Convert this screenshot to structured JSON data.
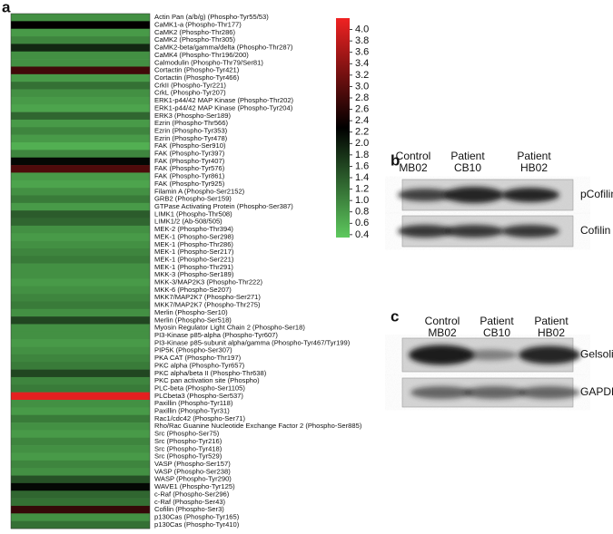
{
  "chart_data": {
    "type": "heatmap",
    "panel_label": "a",
    "categories": [
      "Actin Pan (a/b/g) (Phospho-Tyr55/53)",
      "CaMK1-a (Phospho-Thr177)",
      "CaMK2 (Phospho-Thr286)",
      "CaMK2 (Phospho-Thr305)",
      "CaMK2-beta/gamma/delta (Phospho-Thr287)",
      "CaMK4 (Phospho-Thr196/200)",
      "Calmodulin (Phospho-Thr79/Ser81)",
      "Cortactin (Phospho-Tyr421)",
      "Cortactin (Phospho-Tyr466)",
      "CrkII (Phospho-Tyr221)",
      "CrkL (Phospho-Tyr207)",
      "ERK1-p44/42 MAP Kinase (Phospho-Thr202)",
      "ERK1-p44/42 MAP Kinase (Phospho-Tyr204)",
      "ERK3 (Phospho-Ser189)",
      "Ezrin (Phospho-Thr566)",
      "Ezrin (Phospho-Tyr353)",
      "Ezrin (Phospho-Tyr478)",
      "FAK (Phospho-Ser910)",
      "FAK (Phospho-Tyr397)",
      "FAK (Phospho-Tyr407)",
      "FAK (Phospho-Tyr576)",
      "FAK (Phospho-Tyr861)",
      "FAK (Phospho-Tyr925)",
      "Filamin A (Phospho-Ser2152)",
      "GRB2 (Phospho-Ser159)",
      "GTPase Activating Protein (Phospho-Ser387)",
      "LIMK1 (Phospho-Thr508)",
      "LIMK1/2 (Ab-508/505)",
      "MEK-2 (Phospho-Thr394)",
      "MEK-1 (Phospho-Ser298)",
      "MEK-1 (Phospho-Thr286)",
      "MEK-1 (Phospho-Ser217)",
      "MEK-1 (Phospho-Ser221)",
      "MEK-1 (Phospho-Thr291)",
      "MKK-3 (Phospho-Ser189)",
      "MKK-3/MAP2K3 (Phospho-Thr222)",
      "MKK-6 (Phospho-Se207)",
      "MKK7/MAP2K7 (Phospho-Ser271)",
      "MKK7/MAP2K7 (Phospho-Thr275)",
      "Merlin (Phospho-Ser10)",
      "Merlin (Phospho-Ser518)",
      "Myosin Regulator Light Chain 2 (Phospho-Ser18)",
      "PI3-Kinase p85-alpha (Phospho-Tyr607)",
      "PI3-Kinase p85-subunit alpha/gamma (Phospho-Tyr467/Tyr199)",
      "PIP5K (Phospho-Ser307)",
      "PKA CAT (Phospho-Thr197)",
      "PKC alpha (Phospho-Tyr657)",
      "PKC alpha/beta II (Phospho-Thr638)",
      "PKC pan activation site (Phospho)",
      "PLC-beta (Phospho-Ser1105)",
      "PLCbeta3 (Phospho-Ser537)",
      "Paxillin (Phospho-Tyr118)",
      "Paxillin (Phospho-Tyr31)",
      "Rac1/cdc42 (Phospho-Ser71)",
      "Rho/Rac Guanine Nucleotide Exchange Factor 2 (Phospho-Ser885)",
      "Src (Phospho-Ser75)",
      "Src (Phospho-Tyr216)",
      "Src (Phospho-Tyr418)",
      "Src (Phospho-Tyr529)",
      "VASP (Phospho-Ser157)",
      "VASP (Phospho-Ser238)",
      "WASP (Phospho-Tyr290)",
      "WAVE1 (Phospho-Tyr125)",
      "c-Raf (Phospho-Ser296)",
      "c-Raf (Phospho-Ser43)",
      "Cofilin (Phospho-Ser3)",
      "p130Cas (Phospho-Tyr165)",
      "p130Cas (Phospho-Tyr410)"
    ],
    "values": [
      0.9,
      2.3,
      0.8,
      1.0,
      1.9,
      0.9,
      0.9,
      2.8,
      0.8,
      1.2,
      0.9,
      0.8,
      0.7,
      1.3,
      0.8,
      1.0,
      0.8,
      0.6,
      1.0,
      2.2,
      2.9,
      0.8,
      0.7,
      0.9,
      1.1,
      0.8,
      1.4,
      1.3,
      0.9,
      0.8,
      0.9,
      1.0,
      1.1,
      0.9,
      0.9,
      0.8,
      0.9,
      1.0,
      1.1,
      0.9,
      1.6,
      0.9,
      0.9,
      0.8,
      0.9,
      1.0,
      1.1,
      1.6,
      1.0,
      1.1,
      4.1,
      0.9,
      0.8,
      1.1,
      0.9,
      0.8,
      1.0,
      0.9,
      0.8,
      1.0,
      0.9,
      1.5,
      2.2,
      1.3,
      1.2,
      2.7,
      0.9,
      1.2
    ],
    "colors": [
      "#5ec95e",
      "#000000",
      "#f02222"
    ],
    "ylim": [
      0.35,
      4.2
    ],
    "yticks": [
      {
        "value": 4.0,
        "label": "4.0"
      },
      3.8,
      3.6,
      3.4,
      3.2,
      {
        "value": 3.0,
        "label": "3.0"
      },
      2.8,
      2.6,
      2.4,
      2.2,
      {
        "value": 2.0,
        "label": "2.0"
      },
      1.8,
      1.6,
      1.4,
      1.2,
      {
        "value": 1.0,
        "label": "1.0"
      },
      0.8,
      0.6,
      0.4
    ]
  },
  "blots": [
    {
      "label": "b",
      "columns": [
        [
          "Control",
          "MB02"
        ],
        [
          "Patient",
          "CB10"
        ],
        [
          "Patient",
          "HB02"
        ]
      ],
      "rows": [
        "pCofilin",
        "Cofilin"
      ]
    },
    {
      "label": "c",
      "columns": [
        [
          "Control",
          "MB02"
        ],
        [
          "Patient",
          "CB10"
        ],
        [
          "Patient",
          "HB02"
        ]
      ],
      "rows": [
        "Gelsolin",
        "GAPDH"
      ]
    }
  ]
}
